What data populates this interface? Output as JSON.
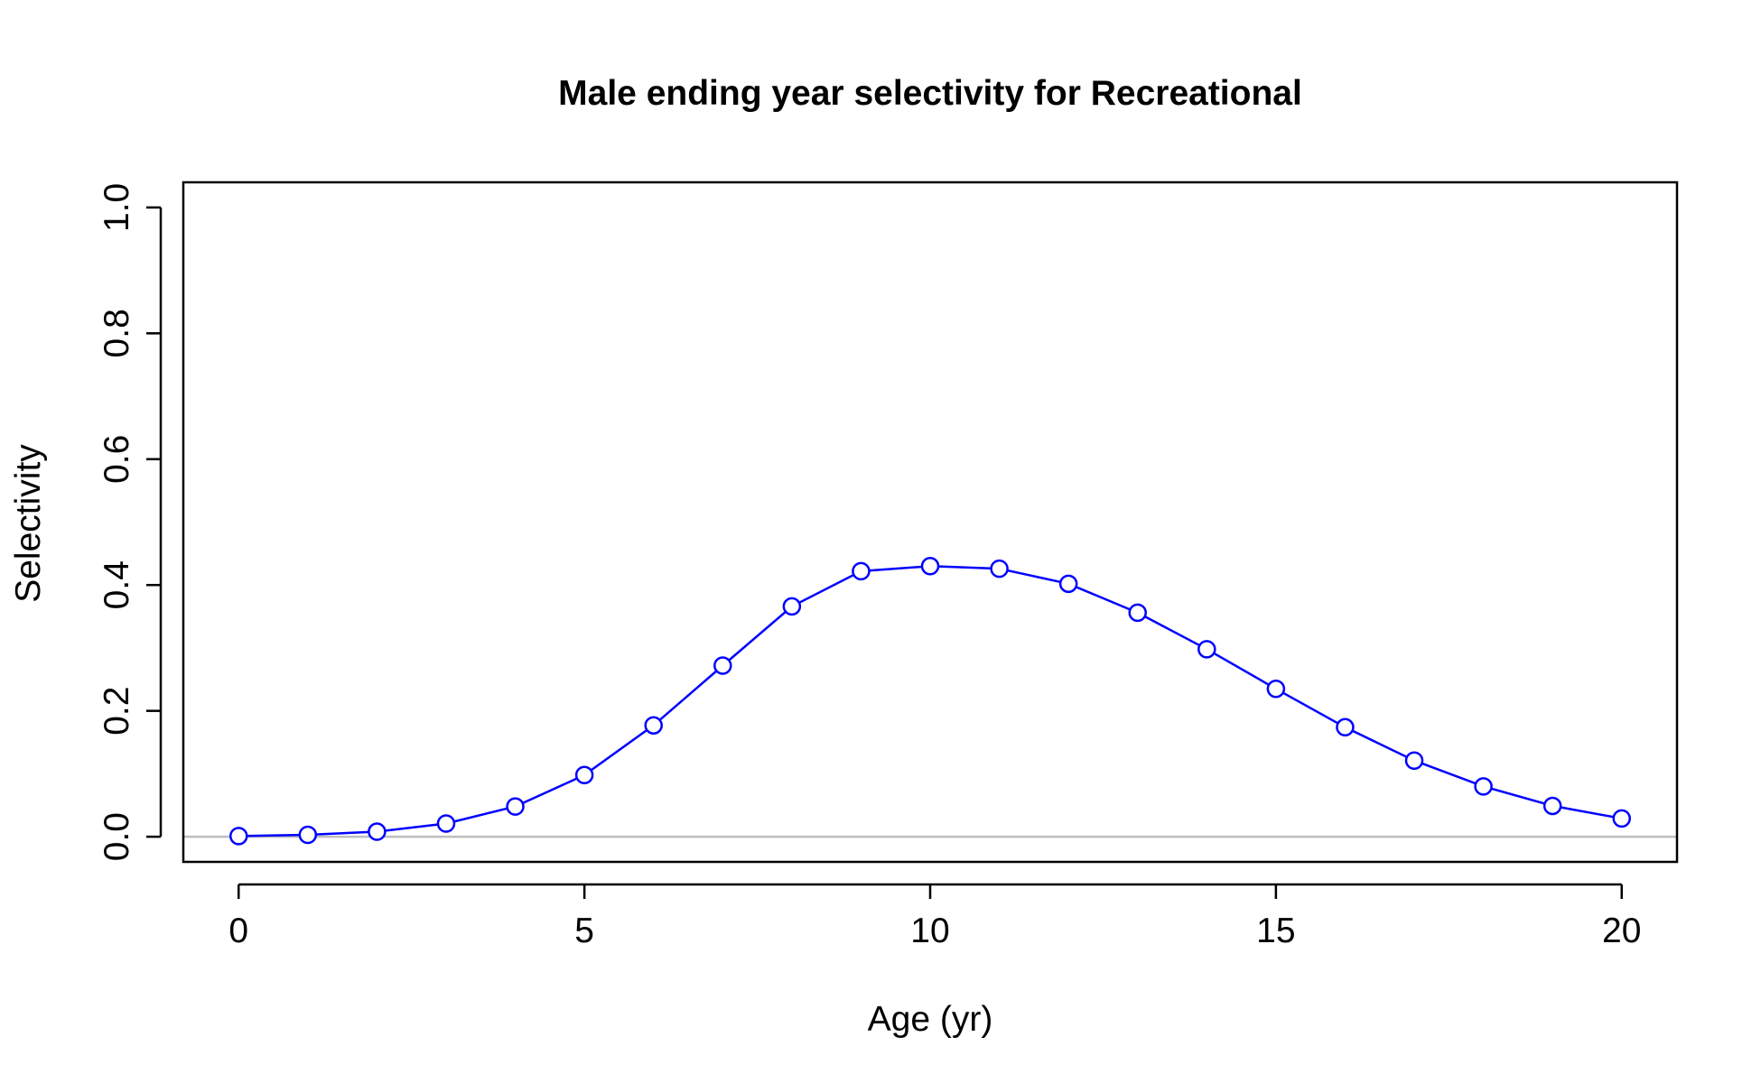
{
  "chart_data": {
    "type": "line",
    "title": "Male ending year selectivity for Recreational",
    "xlabel": "Age (yr)",
    "ylabel": "Selectivity",
    "xlim": [
      -0.8,
      20.8
    ],
    "ylim": [
      -0.04,
      1.04
    ],
    "x_ticks": [
      0,
      5,
      10,
      15,
      20
    ],
    "x_tick_labels": [
      "0",
      "5",
      "10",
      "15",
      "20"
    ],
    "y_ticks": [
      0.0,
      0.2,
      0.4,
      0.6,
      0.8,
      1.0
    ],
    "y_tick_labels": [
      "0.0",
      "0.2",
      "0.4",
      "0.6",
      "0.8",
      "1.0"
    ],
    "grid": false,
    "reference_line": {
      "y": 0,
      "color": "#bebebe"
    },
    "series": [
      {
        "color": "#0000ff",
        "marker": "open-circle",
        "x": [
          0,
          1,
          2,
          3,
          4,
          5,
          6,
          7,
          8,
          9,
          10,
          11,
          12,
          13,
          14,
          15,
          16,
          17,
          18,
          19,
          20
        ],
        "values": [
          0.001,
          0.003,
          0.008,
          0.021,
          0.048,
          0.098,
          0.177,
          0.272,
          0.366,
          0.422,
          0.43,
          0.426,
          0.402,
          0.356,
          0.298,
          0.235,
          0.174,
          0.121,
          0.08,
          0.049,
          0.029
        ]
      }
    ]
  }
}
